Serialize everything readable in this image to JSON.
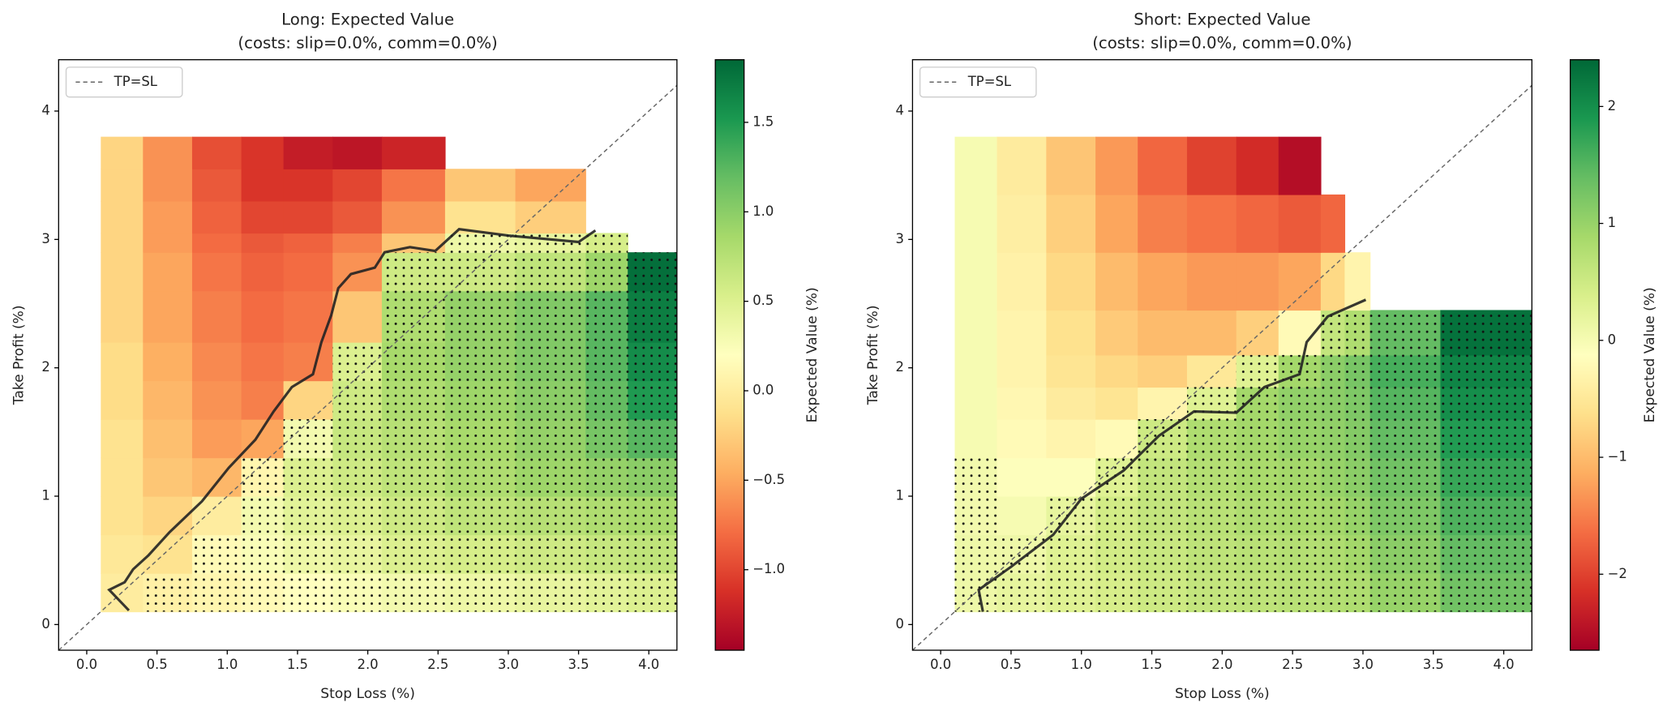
{
  "chart_data": [
    {
      "type": "heatmap",
      "title": "Long: Expected Value",
      "subtitle": "(costs: slip=0.0%, comm=0.0%)",
      "xlabel": "Stop Loss (%)",
      "ylabel": "Take Profit (%)",
      "colorbar_label": "Expected Value (%)",
      "colormap": "RdYlGn",
      "x_edges": [
        0.1,
        0.4,
        0.75,
        1.1,
        1.4,
        1.75,
        2.1,
        2.55,
        3.05,
        3.55,
        3.85,
        4.2
      ],
      "y_edges": [
        0.1,
        0.4,
        0.7,
        1.0,
        1.3,
        1.6,
        1.9,
        2.2,
        2.6,
        2.9,
        3.05,
        3.3,
        3.55,
        3.8
      ],
      "values": [
        [
          0.0,
          0.05,
          0.1,
          0.15,
          0.2,
          0.25,
          0.3,
          0.35,
          0.4,
          0.45,
          0.5
        ],
        [
          -0.05,
          -0.1,
          0.15,
          0.25,
          0.35,
          0.4,
          0.5,
          0.55,
          0.6,
          0.65,
          0.7
        ],
        [
          -0.1,
          -0.2,
          0.0,
          0.3,
          0.45,
          0.5,
          0.6,
          0.7,
          0.75,
          0.8,
          0.85
        ],
        [
          -0.1,
          -0.3,
          -0.4,
          0.1,
          0.5,
          0.6,
          0.7,
          0.8,
          0.9,
          0.95,
          1.0
        ],
        [
          -0.1,
          -0.35,
          -0.55,
          -0.5,
          0.3,
          0.65,
          0.75,
          0.85,
          0.95,
          1.1,
          1.25
        ],
        [
          -0.15,
          -0.4,
          -0.6,
          -0.7,
          -0.2,
          0.6,
          0.8,
          0.9,
          1.0,
          1.2,
          1.5
        ],
        [
          -0.15,
          -0.45,
          -0.65,
          -0.75,
          -0.7,
          0.5,
          0.85,
          0.95,
          1.05,
          1.25,
          1.6
        ],
        [
          -0.2,
          -0.5,
          -0.7,
          -0.8,
          -0.75,
          -0.3,
          0.8,
          0.95,
          1.05,
          1.25,
          1.7
        ],
        [
          -0.2,
          -0.5,
          -0.75,
          -0.85,
          -0.8,
          -0.6,
          0.6,
          0.6,
          0.7,
          0.9,
          1.8
        ],
        [
          -0.2,
          -0.55,
          -0.8,
          -0.9,
          -0.85,
          -0.7,
          -0.3,
          0.35,
          0.4,
          0.55,
          null
        ],
        [
          -0.2,
          -0.55,
          -0.85,
          -1.0,
          -1.0,
          -0.9,
          -0.6,
          -0.1,
          -0.25,
          null,
          null
        ],
        [
          -0.2,
          -0.6,
          -0.9,
          -1.1,
          -1.1,
          -1.0,
          -0.75,
          -0.3,
          -0.5,
          null,
          null
        ],
        [
          -0.2,
          -0.6,
          -0.95,
          -1.1,
          -1.25,
          -1.3,
          -1.2,
          null,
          null,
          null,
          null
        ]
      ],
      "contour": {
        "x": [
          0.3,
          0.16,
          0.27,
          0.33,
          0.44,
          0.59,
          0.82,
          1.01,
          1.2,
          1.33,
          1.46,
          1.61,
          1.67,
          1.74,
          1.79,
          1.88,
          2.05,
          2.12,
          2.3,
          2.48,
          2.65,
          3.0,
          3.5,
          3.62
        ],
        "y": [
          0.11,
          0.27,
          0.33,
          0.43,
          0.54,
          0.72,
          0.96,
          1.22,
          1.44,
          1.66,
          1.85,
          1.95,
          2.2,
          2.41,
          2.62,
          2.73,
          2.78,
          2.9,
          2.94,
          2.91,
          3.08,
          3.03,
          2.98,
          3.07
        ]
      },
      "diagonal": {
        "name": "TP=SL",
        "color": "#666666"
      },
      "legend_position": "upper left",
      "xlim": [
        -0.2,
        4.2
      ],
      "ylim": [
        -0.2,
        4.4
      ],
      "xticks": [
        {
          "value": 0,
          "label": "0.0"
        },
        0.5,
        {
          "value": 1,
          "label": "1.0"
        },
        1.5,
        {
          "value": 2,
          "label": "2.0"
        },
        2.5,
        {
          "value": 3,
          "label": "3.0"
        },
        3.5,
        {
          "value": 4,
          "label": "4.0"
        }
      ],
      "yticks": [
        0,
        1,
        2,
        3,
        4
      ],
      "clim": [
        -1.45,
        1.85
      ],
      "cticks": [
        {
          "value": -1,
          "label": "−1.0"
        },
        {
          "value": -0.5,
          "label": "−0.5"
        },
        {
          "value": 0,
          "label": "0.0"
        },
        0.5,
        {
          "value": 1,
          "label": "1.0"
        },
        1.5
      ]
    },
    {
      "type": "heatmap",
      "title": "Short: Expected Value",
      "subtitle": "(costs: slip=0.0%, comm=0.0%)",
      "xlabel": "Stop Loss (%)",
      "ylabel": "Take Profit (%)",
      "colorbar_label": "Expected Value (%)",
      "colormap": "RdYlGn",
      "x_edges": [
        0.1,
        0.4,
        0.75,
        1.1,
        1.4,
        1.75,
        2.1,
        2.4,
        2.7,
        2.87,
        3.05,
        3.55,
        4.2
      ],
      "y_edges": [
        0.1,
        0.4,
        0.7,
        1.0,
        1.3,
        1.6,
        1.85,
        2.1,
        2.45,
        2.9,
        3.35,
        3.8
      ],
      "values": [
        [
          0.1,
          0.2,
          0.3,
          0.4,
          0.5,
          0.6,
          0.65,
          0.7,
          0.75,
          0.8,
          1.0,
          1.3
        ],
        [
          0.1,
          0.1,
          0.3,
          0.45,
          0.55,
          0.65,
          0.7,
          0.75,
          0.8,
          0.9,
          1.1,
          1.4
        ],
        [
          0.05,
          0.0,
          0.2,
          0.45,
          0.6,
          0.7,
          0.8,
          0.85,
          0.9,
          1.0,
          1.2,
          1.55
        ],
        [
          0.05,
          -0.1,
          -0.1,
          0.3,
          0.6,
          0.75,
          0.85,
          0.9,
          1.0,
          1.1,
          1.3,
          1.7
        ],
        [
          0.0,
          -0.2,
          -0.3,
          -0.2,
          0.5,
          0.8,
          0.9,
          1.0,
          1.05,
          1.15,
          1.4,
          1.85
        ],
        [
          0.0,
          -0.25,
          -0.45,
          -0.55,
          -0.3,
          0.3,
          0.9,
          1.05,
          1.1,
          1.2,
          1.5,
          2.0
        ],
        [
          0.0,
          -0.3,
          -0.55,
          -0.7,
          -0.8,
          -0.5,
          0.3,
          0.9,
          1.1,
          1.25,
          1.6,
          2.1
        ],
        [
          0.0,
          -0.3,
          -0.6,
          -0.85,
          -1.0,
          -1.0,
          -0.8,
          -0.2,
          0.6,
          0.8,
          1.4,
          2.3
        ],
        [
          0.0,
          -0.35,
          -0.7,
          -1.0,
          -1.2,
          -1.3,
          -1.3,
          -1.2,
          -0.7,
          -0.3,
          null,
          null
        ],
        [
          0.0,
          -0.4,
          -0.8,
          -1.2,
          -1.5,
          -1.6,
          -1.7,
          -1.8,
          -1.7,
          null,
          null,
          null
        ],
        [
          0.0,
          -0.45,
          -0.9,
          -1.3,
          -1.7,
          -2.0,
          -2.2,
          -2.5,
          null,
          null,
          null,
          null
        ]
      ],
      "contour": {
        "x": [
          0.3,
          0.27,
          0.5,
          0.8,
          1.0,
          1.3,
          1.55,
          1.8,
          2.1,
          2.3,
          2.55,
          2.6,
          2.75,
          3.02
        ],
        "y": [
          0.1,
          0.27,
          0.45,
          0.7,
          0.98,
          1.2,
          1.47,
          1.66,
          1.65,
          1.85,
          1.95,
          2.2,
          2.4,
          2.53
        ]
      },
      "diagonal": {
        "name": "TP=SL",
        "color": "#666666"
      },
      "legend_position": "upper left",
      "xlim": [
        -0.2,
        4.2
      ],
      "ylim": [
        -0.2,
        4.4
      ],
      "xticks": [
        {
          "value": 0,
          "label": "0.0"
        },
        0.5,
        {
          "value": 1,
          "label": "1.0"
        },
        1.5,
        {
          "value": 2,
          "label": "2.0"
        },
        2.5,
        {
          "value": 3,
          "label": "3.0"
        },
        3.5,
        {
          "value": 4,
          "label": "4.0"
        }
      ],
      "yticks": [
        0,
        1,
        2,
        3,
        4
      ],
      "clim": [
        -2.65,
        2.4
      ],
      "cticks": [
        {
          "value": -2,
          "label": "−2"
        },
        {
          "value": -1,
          "label": "−1"
        },
        0,
        1,
        2
      ]
    }
  ]
}
